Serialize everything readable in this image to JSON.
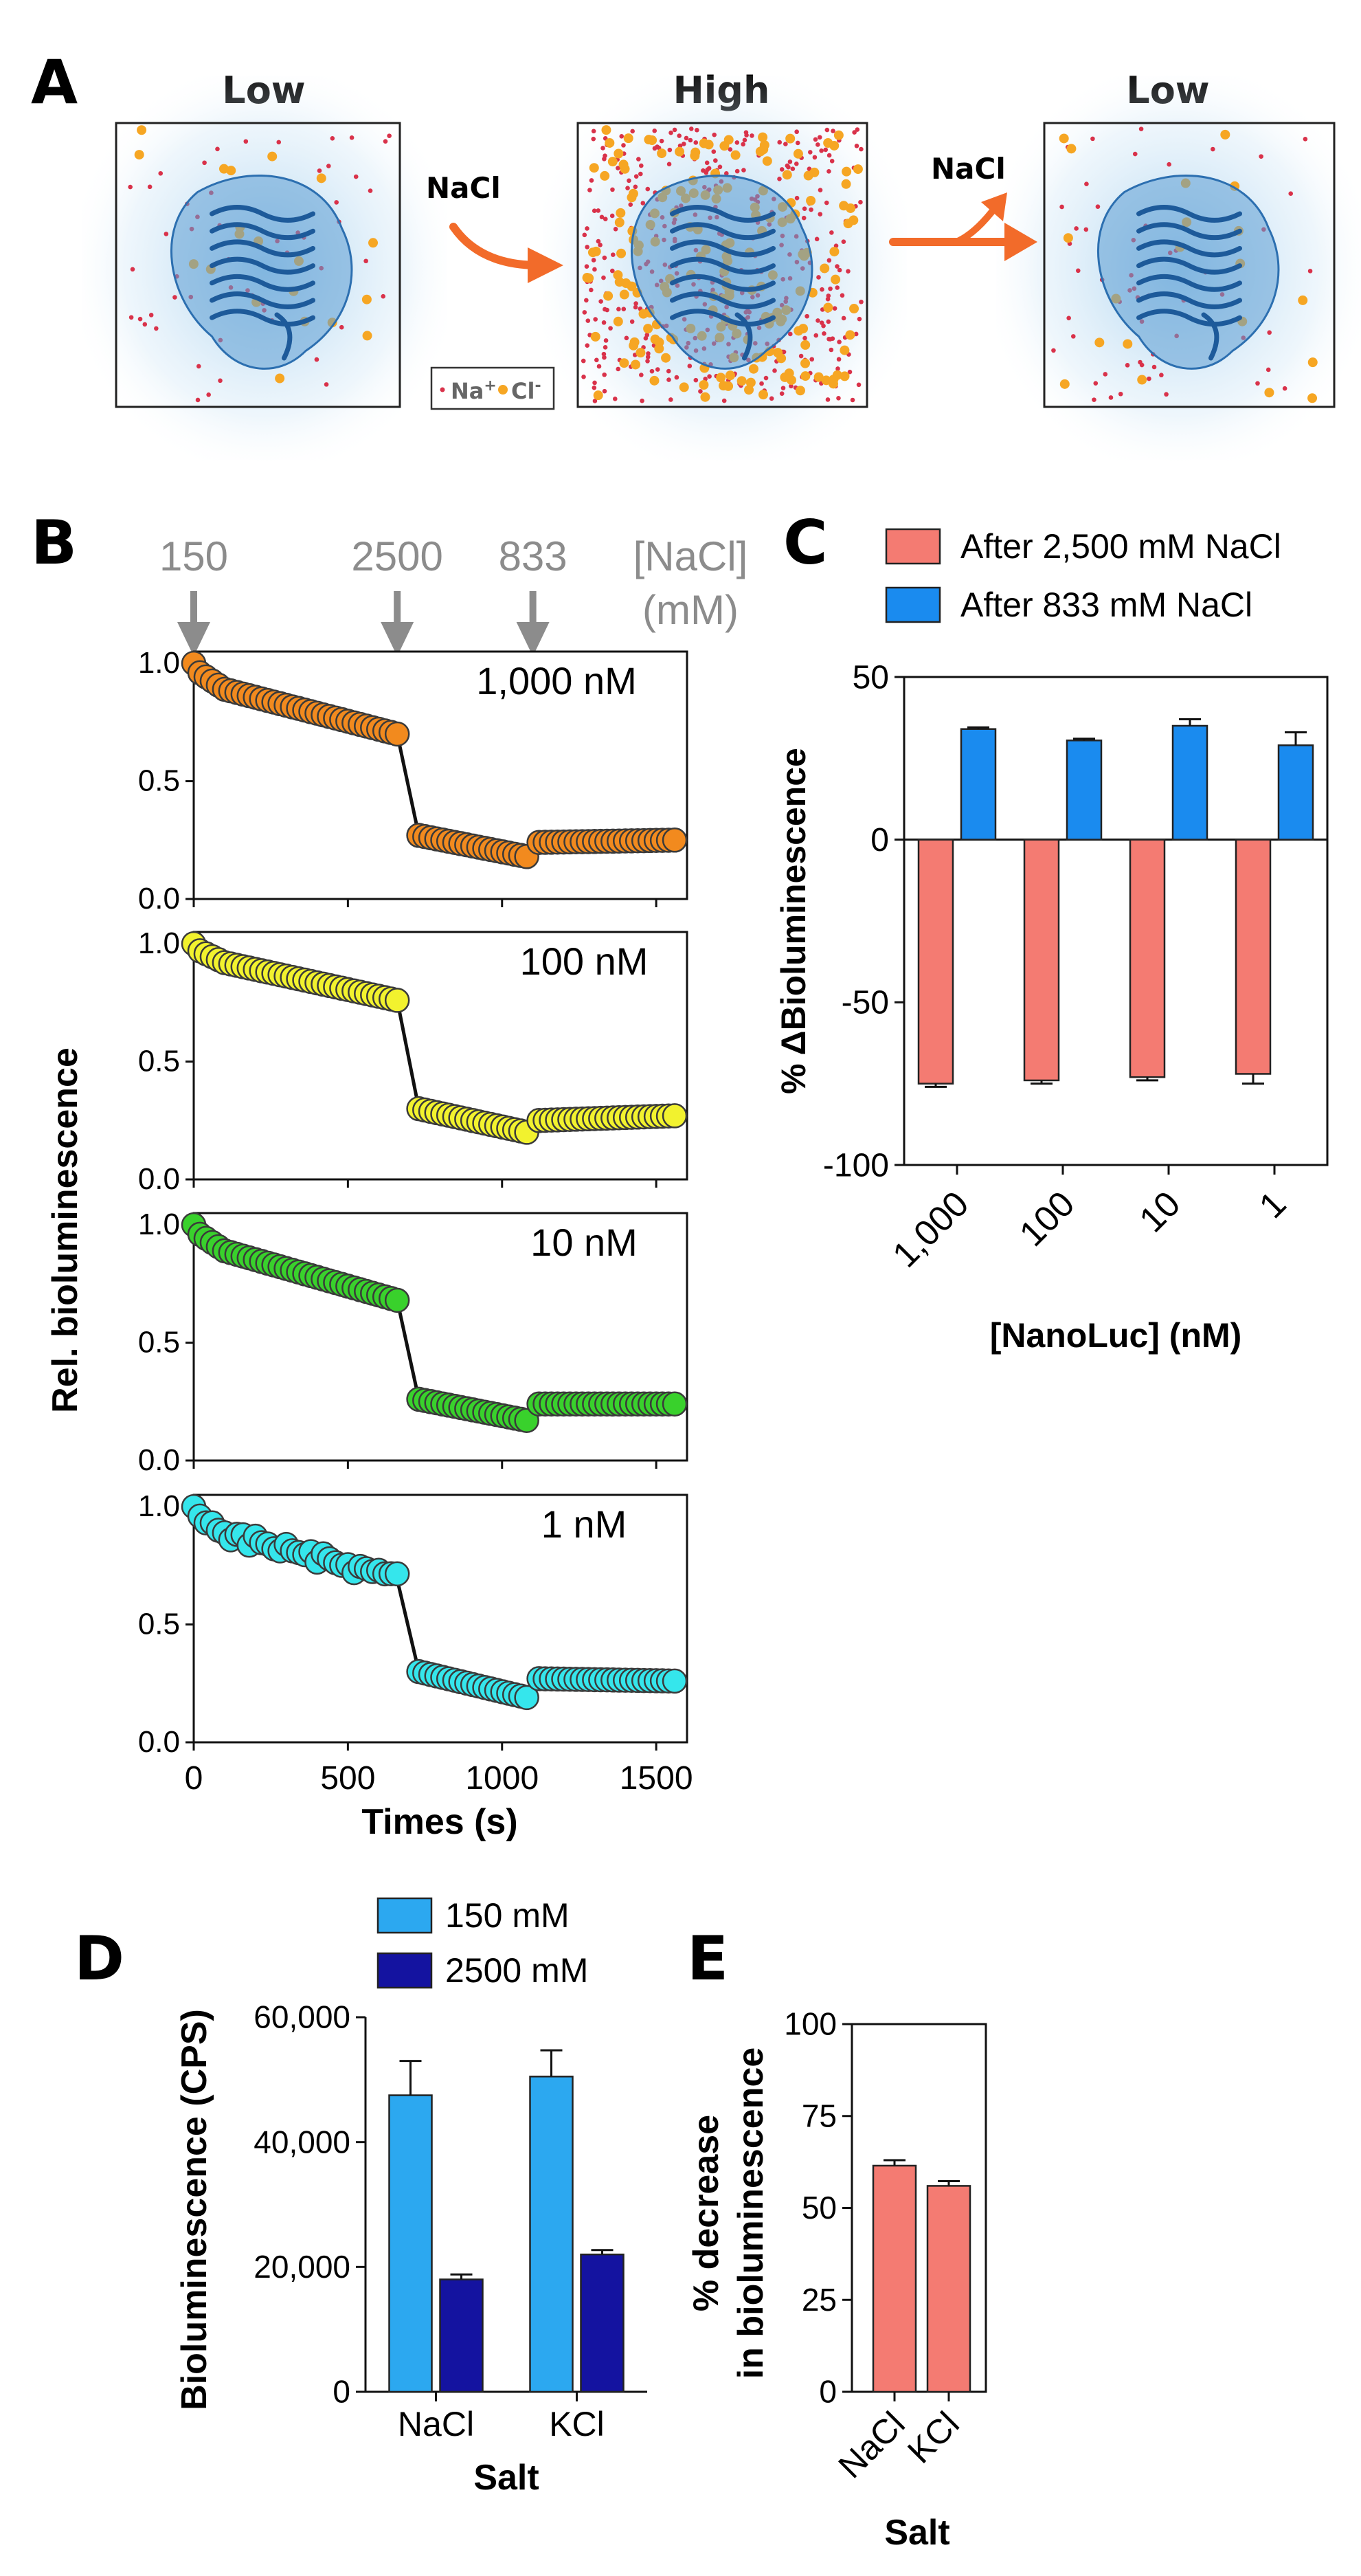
{
  "colors": {
    "orange_ion": "#F6A623",
    "red_ion": "#D9324A",
    "protein": "#2C6FB0",
    "arrow": "#F26B2A",
    "gray": "#8C8C8C",
    "salmon": "#F47B72",
    "blue_bar": "#1A8BEF",
    "light_blue": "#2CA8F0",
    "navy": "#1413A0",
    "series_1000": "#F28A1E",
    "series_100": "#F2F22E",
    "series_10": "#39D12C",
    "series_1": "#35E6EC"
  },
  "panelA": {
    "label": "A",
    "states": [
      "Low",
      "High",
      "Low"
    ],
    "arrow1_label": "NaCl",
    "arrow2_label": "NaCl",
    "legend_na": "Na",
    "legend_na_sup": "+",
    "legend_cl": "Cl",
    "legend_cl_sup": "-"
  },
  "panelB": {
    "label": "B",
    "nacl_header": [
      "[NaCl]",
      "(mM)"
    ],
    "ylabel": "Rel. bioluminescence",
    "xlabel": "Times (s)",
    "xticks": [
      "0",
      "500",
      "1000",
      "1500"
    ],
    "yticks": [
      "0.0",
      "0.5",
      "1.0"
    ]
  },
  "panelC": {
    "label": "C"
  },
  "panelD": {
    "label": "D"
  },
  "panelE": {
    "label": "E"
  },
  "chart_data": [
    {
      "id": "B",
      "type": "scatter",
      "title": "",
      "xlabel": "Times (s)",
      "ylabel": "Rel. bioluminescence",
      "xlim": [
        0,
        1600
      ],
      "ylim": [
        0,
        1.05
      ],
      "annotations": [
        {
          "text": "150",
          "x": 0
        },
        {
          "text": "2500",
          "x": 660
        },
        {
          "text": "833",
          "x": 1100
        }
      ],
      "series": [
        {
          "name": "1,000 nM",
          "label_num": "1,000",
          "label_unit": "nM",
          "color": "#F28A1E",
          "segments": [
            [
              0,
              1.0,
              20,
              0.96,
              100,
              0.89,
              660,
              0.7
            ],
            [
              730,
              0.27,
              1080,
              0.18
            ],
            [
              1120,
              0.24,
              1560,
              0.25
            ]
          ]
        },
        {
          "name": "100 nM",
          "label_num": "100",
          "label_unit": "nM",
          "color": "#F2F22E",
          "segments": [
            [
              0,
              1.0,
              20,
              0.97,
              100,
              0.92,
              660,
              0.76
            ],
            [
              730,
              0.3,
              1080,
              0.2
            ],
            [
              1120,
              0.25,
              1560,
              0.27
            ]
          ]
        },
        {
          "name": "10 nM",
          "label_num": "10",
          "label_unit": "nM",
          "color": "#39D12C",
          "segments": [
            [
              0,
              1.0,
              20,
              0.96,
              100,
              0.89,
              660,
              0.68
            ],
            [
              730,
              0.26,
              1080,
              0.17
            ],
            [
              1120,
              0.24,
              1560,
              0.24
            ]
          ]
        },
        {
          "name": "1 nM",
          "label_num": "1",
          "label_unit": "nM",
          "color": "#35E6EC",
          "segments": [
            [
              0,
              1.0,
              20,
              0.96,
              100,
              0.89,
              660,
              0.69
            ],
            [
              730,
              0.3,
              1080,
              0.19
            ],
            [
              1120,
              0.27,
              1560,
              0.26
            ]
          ]
        }
      ]
    },
    {
      "id": "C",
      "type": "bar",
      "title": "",
      "xlabel": "[NanoLuc] (nM)",
      "ylabel": "%  ΔBioluminescence",
      "categories": [
        "1,000",
        "100",
        "10",
        "1"
      ],
      "ylim": [
        -100,
        50
      ],
      "yticks": [
        "50",
        "0",
        "-50",
        "-100"
      ],
      "series": [
        {
          "name": "After 2,500 mM NaCl",
          "color": "#F47B72",
          "values": [
            -75,
            -74,
            -73,
            -72
          ],
          "errors": [
            1,
            1,
            1,
            3
          ]
        },
        {
          "name": "After 833 mM NaCl",
          "color": "#1A8BEF",
          "values": [
            34,
            30.5,
            35,
            29
          ],
          "errors": [
            0.5,
            0.5,
            2,
            4
          ]
        }
      ]
    },
    {
      "id": "D",
      "type": "bar",
      "title": "",
      "xlabel": "Salt",
      "ylabel": "Bioluminescence (CPS)",
      "categories": [
        "NaCl",
        "KCl"
      ],
      "ylim": [
        0,
        60000
      ],
      "yticks": [
        "0",
        "20,000",
        "40,000",
        "60,000"
      ],
      "series": [
        {
          "name": "150 mM",
          "color": "#2CA8F0",
          "values": [
            47500,
            50500
          ],
          "errors": [
            5500,
            4200
          ]
        },
        {
          "name": "2500 mM",
          "color": "#1413A0",
          "values": [
            18000,
            22000
          ],
          "errors": [
            800,
            700
          ]
        }
      ]
    },
    {
      "id": "E",
      "type": "bar",
      "title": "",
      "xlabel": "Salt",
      "ylabel": [
        "% decrease",
        "in bioluminescence"
      ],
      "categories": [
        "NaCl",
        "KCl"
      ],
      "ylim": [
        0,
        100
      ],
      "yticks": [
        "0",
        "25",
        "50",
        "75",
        "100"
      ],
      "series": [
        {
          "name": "% decrease",
          "color": "#F47B72",
          "values": [
            61.5,
            56
          ],
          "errors": [
            1.5,
            1.3
          ]
        }
      ]
    }
  ]
}
